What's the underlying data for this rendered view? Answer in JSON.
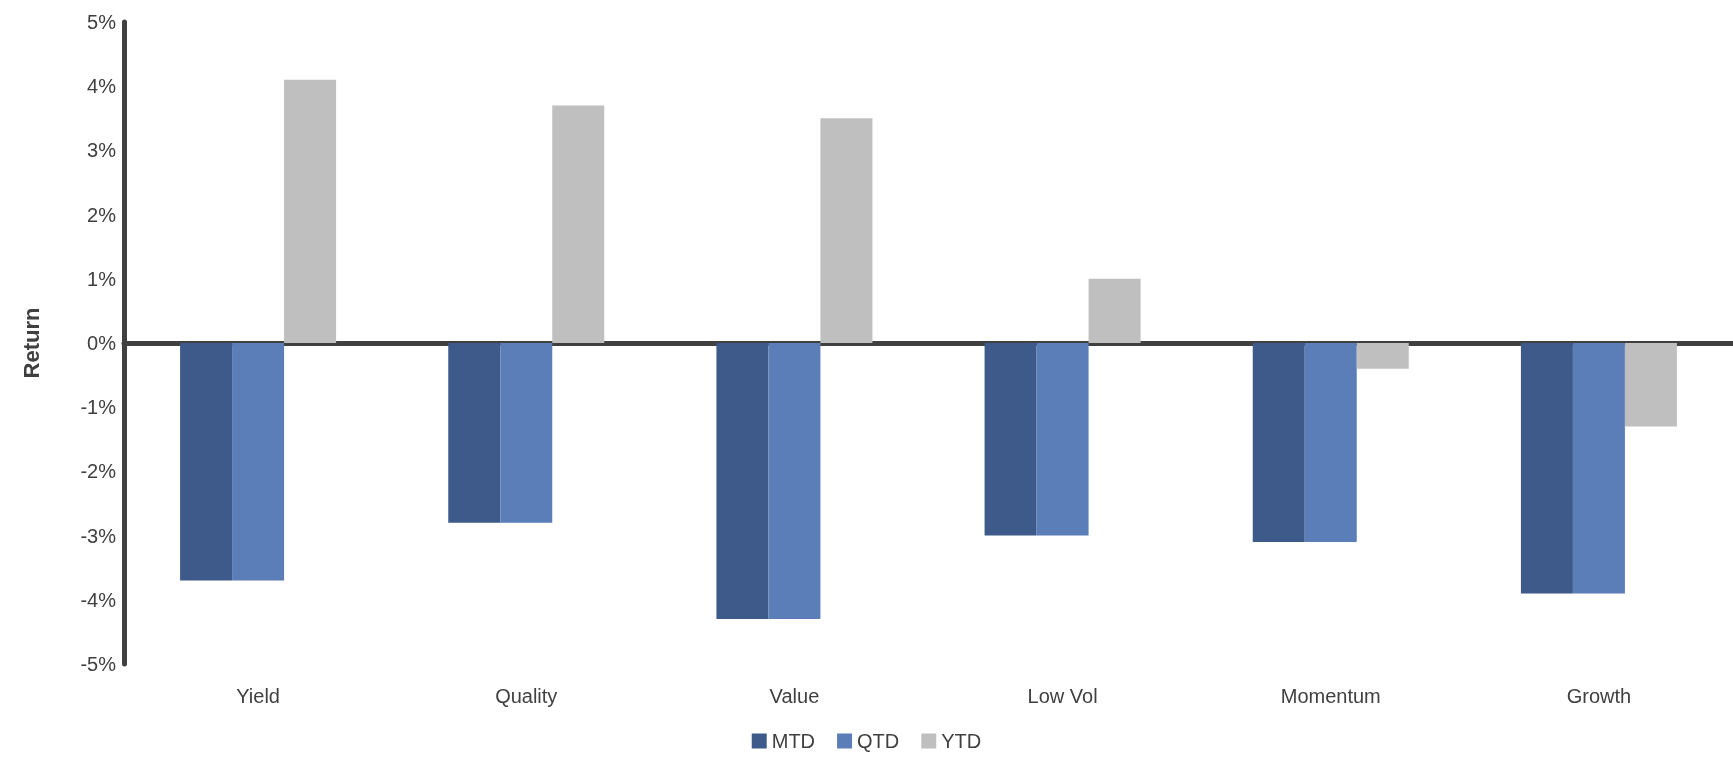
{
  "chart_data": {
    "type": "bar",
    "ylabel": "Return",
    "categories": [
      "Yield",
      "Quality",
      "Value",
      "Low Vol",
      "Momentum",
      "Growth"
    ],
    "series": [
      {
        "name": "MTD",
        "color": "#3d5a8a",
        "values": [
          -3.7,
          -2.8,
          -4.3,
          -3.0,
          -3.1,
          -3.9
        ]
      },
      {
        "name": "QTD",
        "color": "#5b7db8",
        "values": [
          -3.7,
          -2.8,
          -4.3,
          -3.0,
          -3.1,
          -3.9
        ]
      },
      {
        "name": "YTD",
        "color": "#bfbfbf",
        "values": [
          4.1,
          3.7,
          3.5,
          1.0,
          -0.4,
          -1.3
        ]
      }
    ],
    "ylim": [
      -5,
      5
    ],
    "yticks": [
      {
        "value": -5,
        "label": "-5%"
      },
      {
        "value": -4,
        "label": "-4%"
      },
      {
        "value": -3,
        "label": "-3%"
      },
      {
        "value": -2,
        "label": "-2%"
      },
      {
        "value": -1,
        "label": "-1%"
      },
      {
        "value": 0,
        "label": "0%"
      },
      {
        "value": 1,
        "label": "1%"
      },
      {
        "value": 2,
        "label": "2%"
      },
      {
        "value": 3,
        "label": "3%"
      },
      {
        "value": 4,
        "label": "4%"
      },
      {
        "value": 5,
        "label": "5%"
      }
    ],
    "legend": "bottom"
  }
}
